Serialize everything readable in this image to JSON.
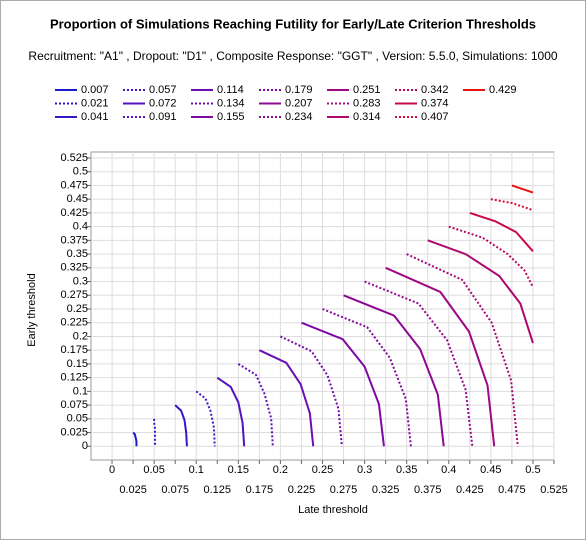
{
  "chart_data": {
    "type": "line",
    "title": "Proportion of Simulations Reaching Futility for Early/Late Criterion Thresholds",
    "subtitle": "Recruitment: \"A1\" , Dropout: \"D1\" , Composite Response: \"GGT\" , Version: 5.5.0, Simulations: 1000",
    "x_label": "Late threshold",
    "y_label": "Early threshold",
    "xlim": [
      -0.025,
      0.525
    ],
    "ylim": [
      -0.025,
      0.525
    ],
    "xticks": [
      0,
      0.025,
      0.05,
      0.075,
      0.1,
      0.125,
      0.15,
      0.175,
      0.2,
      0.225,
      0.25,
      0.275,
      0.3,
      0.325,
      0.35,
      0.375,
      0.4,
      0.425,
      0.45,
      0.475,
      0.5,
      0.525
    ],
    "yticks": [
      0,
      0.025,
      0.05,
      0.075,
      0.1,
      0.125,
      0.15,
      0.175,
      0.2,
      0.225,
      0.25,
      0.275,
      0.3,
      0.325,
      0.35,
      0.375,
      0.4,
      0.425,
      0.45,
      0.475,
      0.5,
      0.525
    ],
    "grid": true,
    "series": [
      {
        "name": "0.007",
        "color": "#1a1ad0",
        "style": "solid",
        "x": [
          0.025,
          0.027,
          0.028,
          0.029,
          0.029
        ],
        "y": [
          0.025,
          0.022,
          0.016,
          0.009,
          0
        ]
      },
      {
        "name": "0.021",
        "color": "#2818cc",
        "style": "dotted",
        "x": [
          0.05,
          0.05,
          0.051,
          0.051,
          0.051
        ],
        "y": [
          0.05,
          0.043,
          0.032,
          0.017,
          0
        ]
      },
      {
        "name": "0.041",
        "color": "#3616c8",
        "style": "solid",
        "x": [
          0.075,
          0.082,
          0.086,
          0.088,
          0.089
        ],
        "y": [
          0.075,
          0.065,
          0.048,
          0.026,
          0
        ]
      },
      {
        "name": "0.057",
        "color": "#4414c4",
        "style": "dotted",
        "x": [
          0.1,
          0.111,
          0.117,
          0.121,
          0.122
        ],
        "y": [
          0.1,
          0.087,
          0.064,
          0.034,
          0
        ]
      },
      {
        "name": "0.072",
        "color": "#5212c0",
        "style": "solid",
        "x": [
          0.125,
          0.141,
          0.15,
          0.155,
          0.157
        ],
        "y": [
          0.125,
          0.108,
          0.08,
          0.043,
          0
        ]
      },
      {
        "name": "0.091",
        "color": "#5e10ba",
        "style": "dotted",
        "x": [
          0.15,
          0.171,
          0.181,
          0.189,
          0.191
        ],
        "y": [
          0.15,
          0.13,
          0.096,
          0.051,
          0
        ]
      },
      {
        "name": "0.114",
        "color": "#6a0eb4",
        "style": "solid",
        "x": [
          0.175,
          0.207,
          0.224,
          0.235,
          0.239
        ],
        "y": [
          0.175,
          0.152,
          0.113,
          0.06,
          0
        ]
      },
      {
        "name": "0.134",
        "color": "#740cac",
        "style": "dotted",
        "x": [
          0.2,
          0.237,
          0.256,
          0.269,
          0.273
        ],
        "y": [
          0.2,
          0.173,
          0.129,
          0.068,
          0
        ]
      },
      {
        "name": "0.155",
        "color": "#7e0aa4",
        "style": "solid",
        "x": [
          0.225,
          0.274,
          0.3,
          0.317,
          0.323
        ],
        "y": [
          0.225,
          0.195,
          0.145,
          0.077,
          0
        ]
      },
      {
        "name": "0.179",
        "color": "#86089c",
        "style": "dotted",
        "x": [
          0.25,
          0.303,
          0.33,
          0.349,
          0.355
        ],
        "y": [
          0.25,
          0.217,
          0.161,
          0.086,
          0
        ]
      },
      {
        "name": "0.207",
        "color": "#8e0894",
        "style": "solid",
        "x": [
          0.275,
          0.335,
          0.366,
          0.387,
          0.394
        ],
        "y": [
          0.275,
          0.238,
          0.177,
          0.094,
          0
        ]
      },
      {
        "name": "0.234",
        "color": "#96088c",
        "style": "dotted",
        "x": [
          0.3,
          0.364,
          0.398,
          0.42,
          0.428
        ],
        "y": [
          0.3,
          0.26,
          0.193,
          0.103,
          0
        ]
      },
      {
        "name": "0.251",
        "color": "#9e0884",
        "style": "solid",
        "x": [
          0.325,
          0.39,
          0.424,
          0.446,
          0.454
        ],
        "y": [
          0.325,
          0.281,
          0.209,
          0.111,
          0
        ]
      },
      {
        "name": "0.283",
        "color": "#a6087a",
        "style": "dotted",
        "x": [
          0.35,
          0.416,
          0.451,
          0.474,
          0.482
        ],
        "y": [
          0.35,
          0.303,
          0.225,
          0.12,
          0
        ]
      },
      {
        "name": "0.314",
        "color": "#ae0870",
        "style": "solid",
        "x": [
          0.375,
          0.42,
          0.46,
          0.485,
          0.5
        ],
        "y": [
          0.375,
          0.35,
          0.31,
          0.26,
          0.188
        ]
      },
      {
        "name": "0.342",
        "color": "#ba0862",
        "style": "dotted",
        "x": [
          0.4,
          0.44,
          0.47,
          0.49,
          0.5
        ],
        "y": [
          0.4,
          0.38,
          0.35,
          0.32,
          0.29
        ]
      },
      {
        "name": "0.374",
        "color": "#c8084c",
        "style": "solid",
        "x": [
          0.425,
          0.455,
          0.48,
          0.5
        ],
        "y": [
          0.425,
          0.41,
          0.39,
          0.355
        ]
      },
      {
        "name": "0.407",
        "color": "#d80a34",
        "style": "dotted",
        "x": [
          0.45,
          0.475,
          0.5
        ],
        "y": [
          0.45,
          0.443,
          0.43
        ]
      },
      {
        "name": "0.429",
        "color": "#e81212",
        "style": "solid",
        "x": [
          0.475,
          0.5
        ],
        "y": [
          0.475,
          0.462
        ]
      }
    ]
  }
}
